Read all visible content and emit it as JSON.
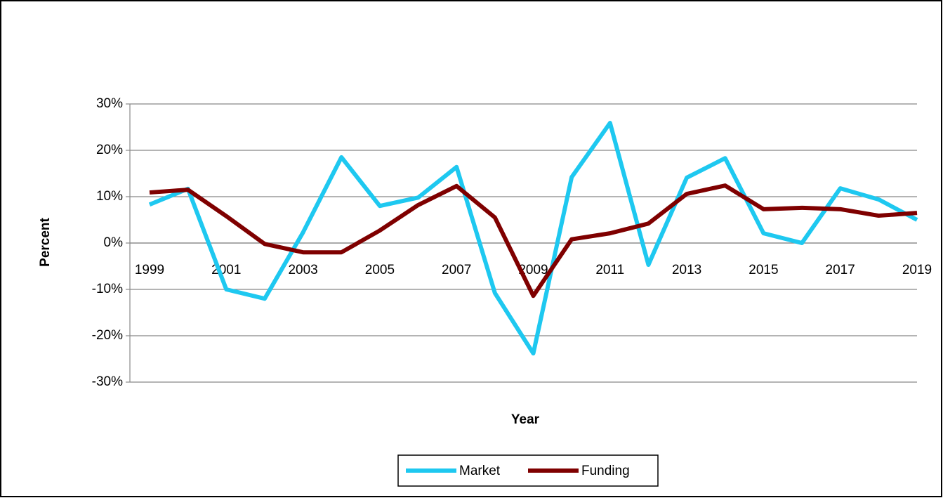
{
  "chart_data": {
    "type": "line",
    "categories": [
      "1999",
      null,
      "2001",
      null,
      "2003",
      null,
      "2005",
      null,
      "2007",
      null,
      "2009",
      null,
      "2011",
      null,
      "2013",
      null,
      "2015",
      null,
      "2017",
      null,
      "2019"
    ],
    "series": [
      {
        "name": "Market",
        "color": "#1ec8f0",
        "values": [
          8.3,
          11.7,
          -10,
          -12,
          2.3,
          18.5,
          8,
          9.8,
          16.4,
          -10.8,
          -23.8,
          14.2,
          25.9,
          -4.7,
          14.1,
          18.3,
          2.1,
          0,
          11.8,
          9.4,
          5.0
        ]
      },
      {
        "name": "Funding",
        "color": "#7f0000",
        "values": [
          10.9,
          11.5,
          5.8,
          -0.2,
          -2,
          -2,
          2.7,
          8.2,
          12.3,
          5.5,
          -11.4,
          0.8,
          2.1,
          4.2,
          10.6,
          12.4,
          7.3,
          7.6,
          7.3,
          5.9,
          6.5
        ]
      }
    ],
    "ylim": [
      -30,
      30
    ],
    "yticks": [
      {
        "value": -30,
        "label": "-30%"
      },
      {
        "value": -20,
        "label": "-20%"
      },
      {
        "value": -10,
        "label": "-10%"
      },
      {
        "value": 0,
        "label": "0%"
      },
      {
        "value": 10,
        "label": "10%"
      },
      {
        "value": 20,
        "label": "20%"
      },
      {
        "value": 30,
        "label": "30%"
      }
    ],
    "xlabel": "Year",
    "ylabel": "Percent",
    "grid": true,
    "legend": "bottom"
  }
}
